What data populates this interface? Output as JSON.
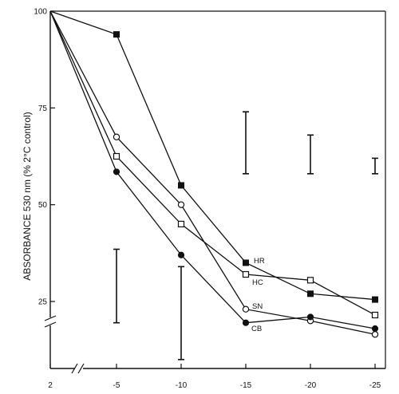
{
  "chart_data": {
    "type": "line",
    "title": "",
    "xlabel": "",
    "ylabel": "ABSORBANCE 530 nm (% 2°C control)",
    "x_tick_labels": [
      "2",
      "-5",
      "-10",
      "-15",
      "-20",
      "-25"
    ],
    "y_tick_labels": [
      "100",
      "75",
      "50",
      "25"
    ],
    "ylim": [
      15,
      100
    ],
    "grid": false,
    "axis_break": true,
    "series": [
      {
        "name": "HR",
        "marker": "filled-square",
        "points": [
          [
            2,
            100
          ],
          [
            -5,
            94
          ],
          [
            -10,
            55
          ],
          [
            -15,
            35
          ],
          [
            -20,
            27
          ],
          [
            -25,
            25.5
          ]
        ]
      },
      {
        "name": "HC",
        "marker": "open-square",
        "points": [
          [
            2,
            100
          ],
          [
            -5,
            62.5
          ],
          [
            -10,
            45
          ],
          [
            -15,
            32
          ],
          [
            -20,
            30.5
          ],
          [
            -25,
            21.5
          ]
        ]
      },
      {
        "name": "SN",
        "marker": "open-circle",
        "points": [
          [
            2,
            100
          ],
          [
            -5,
            67.5
          ],
          [
            -10,
            50
          ],
          [
            -15,
            23
          ],
          [
            -20,
            20
          ],
          [
            -25,
            16.5
          ]
        ]
      },
      {
        "name": "CB",
        "marker": "filled-circle",
        "points": [
          [
            2,
            100
          ],
          [
            -5,
            58.5
          ],
          [
            -10,
            37
          ],
          [
            -15,
            19.5
          ],
          [
            -20,
            21
          ],
          [
            -25,
            18
          ]
        ]
      }
    ],
    "error_bars": [
      {
        "x": -5,
        "low": 19.5,
        "high": 38.5
      },
      {
        "x": -10,
        "low": 10,
        "high": 34
      },
      {
        "x": -15,
        "low": 58,
        "high": 74
      },
      {
        "x": -20,
        "low": 58,
        "high": 68
      },
      {
        "x": -25,
        "low": 58,
        "high": 62
      }
    ]
  }
}
